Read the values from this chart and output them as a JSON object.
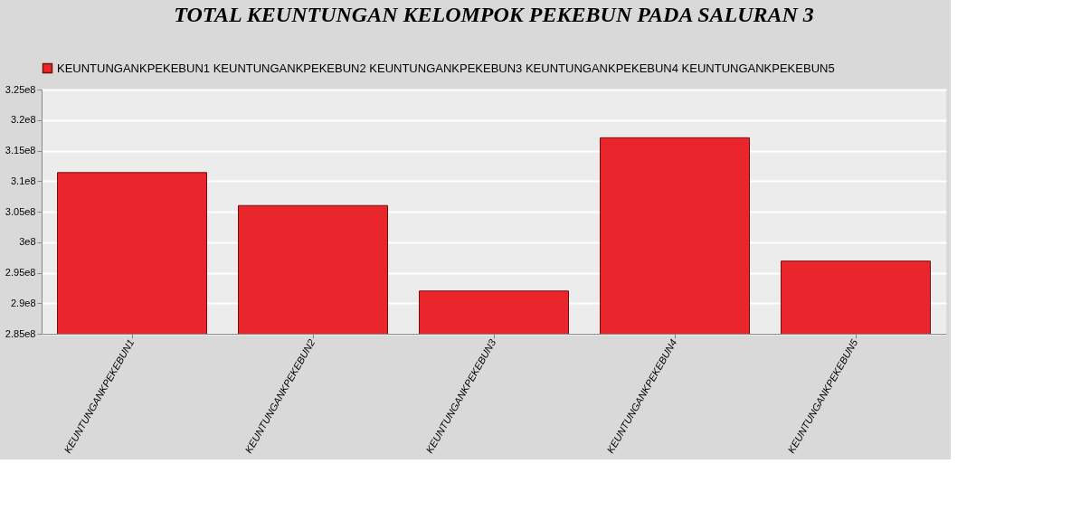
{
  "chart_data": {
    "type": "bar",
    "title": "TOTAL KEUNTUNGAN KELOMPOK PEKEBUN PADA SALURAN 3",
    "categories": [
      "KEUNTUNGANKPEKEBUN1",
      "KEUNTUNGANKPEKEBUN2",
      "KEUNTUNGANKPEKEBUN3",
      "KEUNTUNGANKPEKEBUN4",
      "KEUNTUNGANKPEKEBUN5"
    ],
    "series": [
      {
        "name": "KEUNTUNGANKPEKEBUN1 KEUNTUNGANKPEKEBUN2 KEUNTUNGANKPEKEBUN3 KEUNTUNGANKPEKEBUN4 KEUNTUNGANKPEKEBUN5",
        "color": "#e8262b",
        "values": [
          311400000,
          306000000,
          292000000,
          317100000,
          296900000
        ]
      }
    ],
    "ylim": [
      285000000,
      325000000
    ],
    "yticks": [
      {
        "value": 285000000,
        "label": "2.85e8"
      },
      {
        "value": 290000000,
        "label": "2.9e8"
      },
      {
        "value": 295000000,
        "label": "2.95e8"
      },
      {
        "value": 300000000,
        "label": "3e8"
      },
      {
        "value": 305000000,
        "label": "3.05e8"
      },
      {
        "value": 310000000,
        "label": "3.1e8"
      },
      {
        "value": 315000000,
        "label": "3.15e8"
      },
      {
        "value": 320000000,
        "label": "3.2e8"
      },
      {
        "value": 325000000,
        "label": "3.25e8"
      }
    ],
    "grid": "y",
    "legend": "top left"
  }
}
